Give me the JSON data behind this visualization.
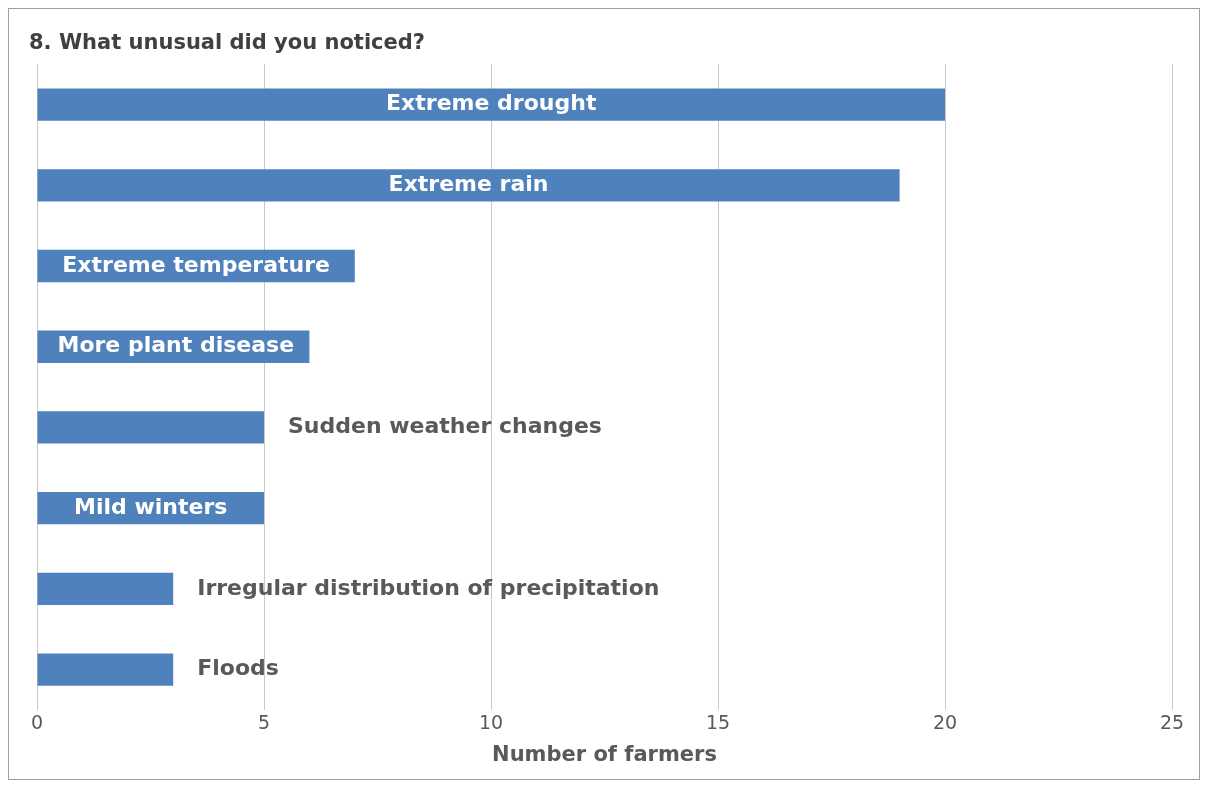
{
  "chart_data": {
    "type": "bar",
    "orientation": "horizontal",
    "title": "8. What unusual did you noticed?",
    "xlabel": "Number of farmers",
    "categories": [
      "Extreme drought",
      "Extreme rain",
      "Extreme temperature",
      "More plant disease",
      "Sudden weather changes",
      "Mild winters",
      "Irregular distribution of precipitation",
      "Floods"
    ],
    "values": [
      20,
      19,
      7,
      6,
      5,
      5,
      3,
      3
    ],
    "color": "#4f81bd",
    "xlim": [
      0,
      25
    ],
    "xticks": [
      0,
      5,
      10,
      15,
      20,
      25
    ],
    "grid": "x",
    "legend": false
  }
}
